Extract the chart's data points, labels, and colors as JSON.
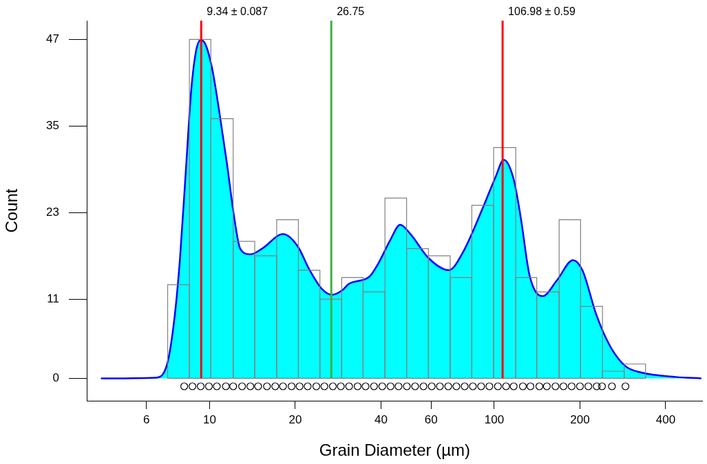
{
  "chart_data": {
    "type": "histogram",
    "xlabel": "Grain Diameter (µm)",
    "ylabel": "Count",
    "log": "x",
    "bins": [
      7.12,
      8.49,
      10.1,
      12.1,
      14.4,
      17.2,
      20.5,
      24.4,
      29.1,
      34.6,
      41.3,
      49.2,
      58.7,
      70.0,
      83.4,
      99.5,
      119,
      141,
      169,
      201,
      240,
      286,
      340
    ],
    "values": [
      13,
      47,
      36,
      19,
      17,
      22,
      15,
      11,
      14,
      12,
      25,
      18,
      17,
      14,
      24,
      32,
      14,
      12,
      22,
      10,
      1,
      2
    ],
    "color": "#808080",
    "series": [
      {
        "type": "area",
        "color": "#00ffff",
        "x": [
          4.15,
          6.45,
          7.08,
          7.53,
          7.87,
          8.28,
          8.61,
          8.95,
          9.3,
          9.67,
          10.2,
          10.8,
          11.5,
          12.2,
          12.8,
          13.9,
          15.3,
          18.1,
          20.4,
          22.4,
          24.8,
          26.9,
          29.4,
          30.8,
          36.4,
          39.1,
          43.0,
          46.7,
          50.8,
          58.7,
          69.3,
          77.4,
          91.5,
          101,
          108,
          117,
          124,
          133,
          148,
          166,
          189,
          204,
          228,
          255,
          289,
          329,
          434,
          534
        ],
        "values": [
          0,
          0.1,
          1.9,
          8.5,
          16.7,
          29.8,
          39.8,
          45.3,
          46.9,
          46.3,
          43,
          37.1,
          29.8,
          22.3,
          18.0,
          17.2,
          18.0,
          20.0,
          18.3,
          15.1,
          12.4,
          11.6,
          12.3,
          13.1,
          14.1,
          15.9,
          19.1,
          21.3,
          20.0,
          16.7,
          15.0,
          17.4,
          23.8,
          27.9,
          30.3,
          27.6,
          22.2,
          14.3,
          11.4,
          13.6,
          16.4,
          15.0,
          8.9,
          4.5,
          1.7,
          0.8,
          0.2,
          0
        ]
      },
      {
        "type": "scatter",
        "marker": "circle",
        "color": "#000000",
        "x": [
          8.14,
          8.7,
          9.3,
          9.94,
          10.6,
          11.4,
          12.1,
          13.0,
          13.9,
          14.8,
          15.9,
          17.0,
          18.1,
          19.4,
          20.7,
          22.1,
          23.7,
          25.3,
          27.1,
          28.9,
          30.9,
          33.1,
          35.3,
          37.8,
          40.4,
          43.2,
          46.1,
          49.3,
          52.7,
          56.4,
          60.3,
          64.4,
          68.9,
          73.6,
          78.7,
          84.1,
          89.9,
          96.1,
          103,
          110,
          117,
          126,
          134,
          144,
          153,
          164,
          175,
          187,
          200,
          214,
          229,
          239,
          259,
          289
        ],
        "values": [
          -1.1,
          -1.1,
          -1.1,
          -1.1,
          -1.1,
          -1.1,
          -1.1,
          -1.1,
          -1.1,
          -1.1,
          -1.1,
          -1.1,
          -1.1,
          -1.1,
          -1.1,
          -1.1,
          -1.1,
          -1.1,
          -1.1,
          -1.1,
          -1.1,
          -1.1,
          -1.1,
          -1.1,
          -1.1,
          -1.1,
          -1.1,
          -1.1,
          -1.1,
          -1.1,
          -1.1,
          -1.1,
          -1.1,
          -1.1,
          -1.1,
          -1.1,
          -1.1,
          -1.1,
          -1.1,
          -1.1,
          -1.1,
          -1.1,
          -1.1,
          -1.1,
          -1.1,
          -1.1,
          -1.1,
          -1.1,
          -1.1,
          -1.1,
          -1.1,
          -1.1,
          -1.1,
          -1.1
        ]
      }
    ],
    "ref_lines": [
      {
        "axis": "x",
        "value": 9.34,
        "label": "9.34 ± 0.087",
        "color": "#ff0000"
      },
      {
        "axis": "x",
        "value": 26.75,
        "label": "26.75",
        "color": "#3cb043"
      },
      {
        "axis": "x",
        "value": 106.98,
        "label": "106.98 ± 0.59",
        "color": "#ff0000"
      }
    ],
    "xlim": [
      3.7,
      540
    ],
    "xticks": [
      6,
      10,
      20,
      40,
      60,
      100,
      200,
      400
    ],
    "ylim": [
      -3.1,
      49.6
    ],
    "yticks": [
      0,
      11,
      23,
      35,
      47
    ]
  }
}
